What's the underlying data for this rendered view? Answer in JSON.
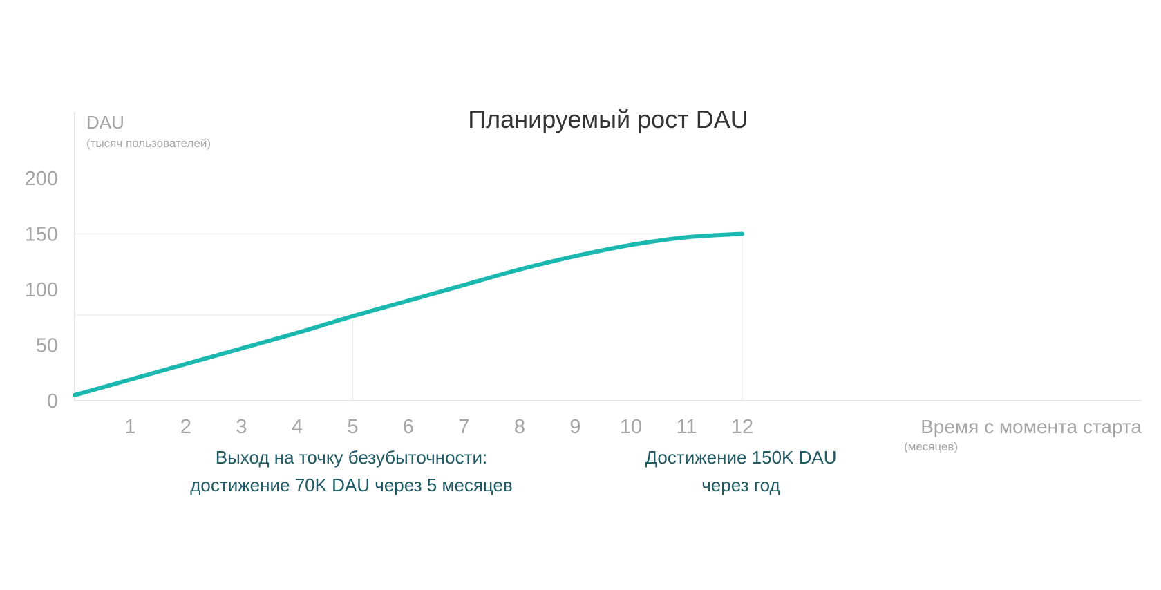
{
  "chart_data": {
    "type": "line",
    "title": "Планируемый рост DAU",
    "ylabel": "DAU",
    "ylabel_unit": "(тысяч пользователей)",
    "xlabel": "Время с момента старта",
    "xlabel_unit": "(месяцев)",
    "ylim": [
      0,
      200
    ],
    "yticks": [
      0,
      50,
      100,
      150,
      200
    ],
    "xlim": [
      0,
      20
    ],
    "xticks": [
      1,
      2,
      3,
      4,
      5,
      6,
      7,
      8,
      9,
      10,
      11,
      12
    ],
    "grid": false,
    "series_color": "#1bb8b0",
    "series": [
      {
        "x": [
          0,
          1,
          2,
          3,
          4,
          5,
          6,
          7,
          8,
          9,
          10,
          11,
          12
        ],
        "values": [
          5,
          19,
          33,
          47,
          61,
          76,
          90,
          104,
          118,
          130,
          140,
          147,
          150
        ]
      }
    ],
    "guides": [
      {
        "x": 5,
        "y": 77
      },
      {
        "x": 12,
        "y": 150
      }
    ],
    "annotations": [
      {
        "x": 5,
        "lines": [
          "Выход на точку безубыточности:",
          "достижение 70K DAU через 5 месяцев"
        ]
      },
      {
        "x": 12,
        "lines": [
          "Достижение 150K DAU",
          "через год"
        ]
      }
    ]
  }
}
